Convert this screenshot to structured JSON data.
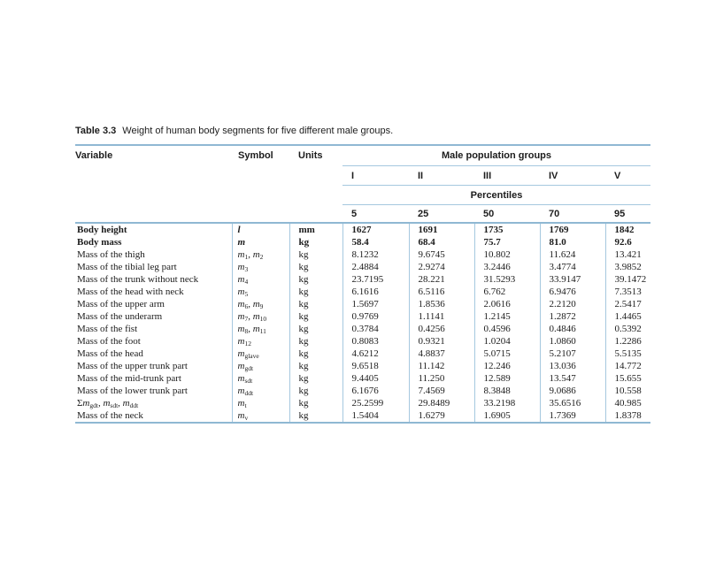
{
  "table": {
    "title_label": "Table 3.3",
    "title_text": "Weight of human body segments for five different male groups.",
    "columns": {
      "variable": "Variable",
      "symbol": "Symbol",
      "units": "Units"
    },
    "group_header": "Male population groups",
    "group_columns": [
      "I",
      "II",
      "III",
      "IV",
      "V"
    ],
    "percentiles_label": "Percentiles",
    "percentiles": [
      "5",
      "25",
      "50",
      "70",
      "95"
    ],
    "colors": {
      "rule_thin": "#a5c8df",
      "rule_thick": "#8fb8d3"
    },
    "rows": [
      {
        "variable": "Body height",
        "symbol": "*l*",
        "units": "mm",
        "values": [
          "1627",
          "1691",
          "1735",
          "1769",
          "1842"
        ],
        "bold": true
      },
      {
        "variable": "Body mass",
        "symbol": "*m*",
        "units": "kg",
        "values": [
          "58.4",
          "68.4",
          "75.7",
          "81.0",
          "92.6"
        ],
        "bold": true
      },
      {
        "variable": "Mass of the thigh",
        "symbol": "*m*_{1}, *m*_{2}",
        "units": "kg",
        "values": [
          "8.1232",
          "9.6745",
          "10.802",
          "11.624",
          "13.421"
        ],
        "bold": false
      },
      {
        "variable": "Mass of the tibial leg part",
        "symbol": "*m*_{3}",
        "units": "kg",
        "values": [
          "2.4884",
          "2.9274",
          "3.2446",
          "3.4774",
          "3.9852"
        ],
        "bold": false
      },
      {
        "variable": "Mass of the trunk without neck",
        "symbol": "*m*_{4}",
        "units": "kg",
        "values": [
          "23.7195",
          "28.221",
          "31.5293",
          "33.9147",
          "39.1472"
        ],
        "bold": false
      },
      {
        "variable": "Mass of the head with neck",
        "symbol": "*m*_{5}",
        "units": "kg",
        "values": [
          "6.1616",
          "6.5116",
          "6.762",
          "6.9476",
          "7.3513"
        ],
        "bold": false
      },
      {
        "variable": "Mass of the upper arm",
        "symbol": "*m*_{6}, *m*_{9}",
        "units": "kg",
        "values": [
          "1.5697",
          "1.8536",
          "2.0616",
          "2.2120",
          "2.5417"
        ],
        "bold": false
      },
      {
        "variable": "Mass of the underarm",
        "symbol": "*m*_{7}, *m*_{10}",
        "units": "kg",
        "values": [
          "0.9769",
          "1.1141",
          "1.2145",
          "1.2872",
          "1.4465"
        ],
        "bold": false
      },
      {
        "variable": "Mass of the fist",
        "symbol": "*m*_{8}, *m*_{11}",
        "units": "kg",
        "values": [
          "0.3784",
          "0.4256",
          "0.4596",
          "0.4846",
          "0.5392"
        ],
        "bold": false
      },
      {
        "variable": "Mass of the foot",
        "symbol": "*m*_{12}",
        "units": "kg",
        "values": [
          "0.8083",
          "0.9321",
          "1.0204",
          "1.0860",
          "1.2286"
        ],
        "bold": false
      },
      {
        "variable": "Mass of the head",
        "symbol": "*m*_{glave}",
        "units": "kg",
        "values": [
          "4.6212",
          "4.8837",
          "5.0715",
          "5.2107",
          "5.5135"
        ],
        "bold": false
      },
      {
        "variable": "Mass of the upper trunk part",
        "symbol": "*m*_{gdt}",
        "units": "kg",
        "values": [
          "9.6518",
          "11.142",
          "12.246",
          "13.036",
          "14.772"
        ],
        "bold": false
      },
      {
        "variable": "Mass of the mid-trunk part",
        "symbol": "*m*_{sdt}",
        "units": "kg",
        "values": [
          "9.4405",
          "11.250",
          "12.589",
          "13.547",
          "15.655"
        ],
        "bold": false
      },
      {
        "variable": "Mass of the lower trunk part",
        "symbol": "*m*_{ddt}",
        "units": "kg",
        "values": [
          "6.1676",
          "7.4569",
          "8.3848",
          "9.0686",
          "10.558"
        ],
        "bold": false
      },
      {
        "variable": "Σ*m*_{gdt}, *m*_{sdt}, *m*_{ddt}",
        "symbol": "*m*_{t}",
        "units": "kg",
        "values": [
          "25.2599",
          "29.8489",
          "33.2198",
          "35.6516",
          "40.985"
        ],
        "bold": false
      },
      {
        "variable": "Mass of the neck",
        "symbol": "*m*_{v}",
        "units": "kg",
        "values": [
          "1.5404",
          "1.6279",
          "1.6905",
          "1.7369",
          "1.8378"
        ],
        "bold": false
      }
    ]
  }
}
